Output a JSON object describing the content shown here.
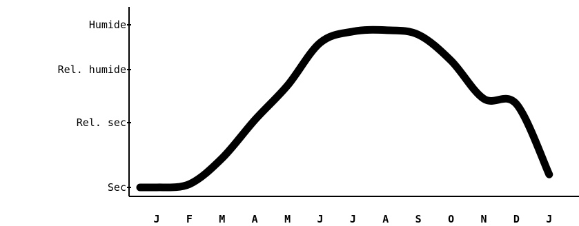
{
  "chart_data": {
    "type": "line",
    "title": "",
    "xlabel": "",
    "ylabel": "",
    "categories": [
      "J",
      "F",
      "M",
      "A",
      "M",
      "J",
      "J",
      "A",
      "S",
      "O",
      "N",
      "D",
      "J"
    ],
    "y_levels": [
      "Sec",
      "Rel. sec",
      "Rel. humide",
      "Humide"
    ],
    "ylim": [
      0,
      3
    ],
    "series": [
      {
        "values": [
          0.0,
          0.05,
          0.45,
          1.05,
          1.7,
          2.6,
          2.85,
          2.88,
          2.78,
          2.2,
          1.45,
          1.35,
          0.2
        ]
      }
    ],
    "grid": false,
    "legend": "none",
    "colors": {
      "line": "#000000",
      "axis": "#000000",
      "background": "#ffffff"
    }
  }
}
